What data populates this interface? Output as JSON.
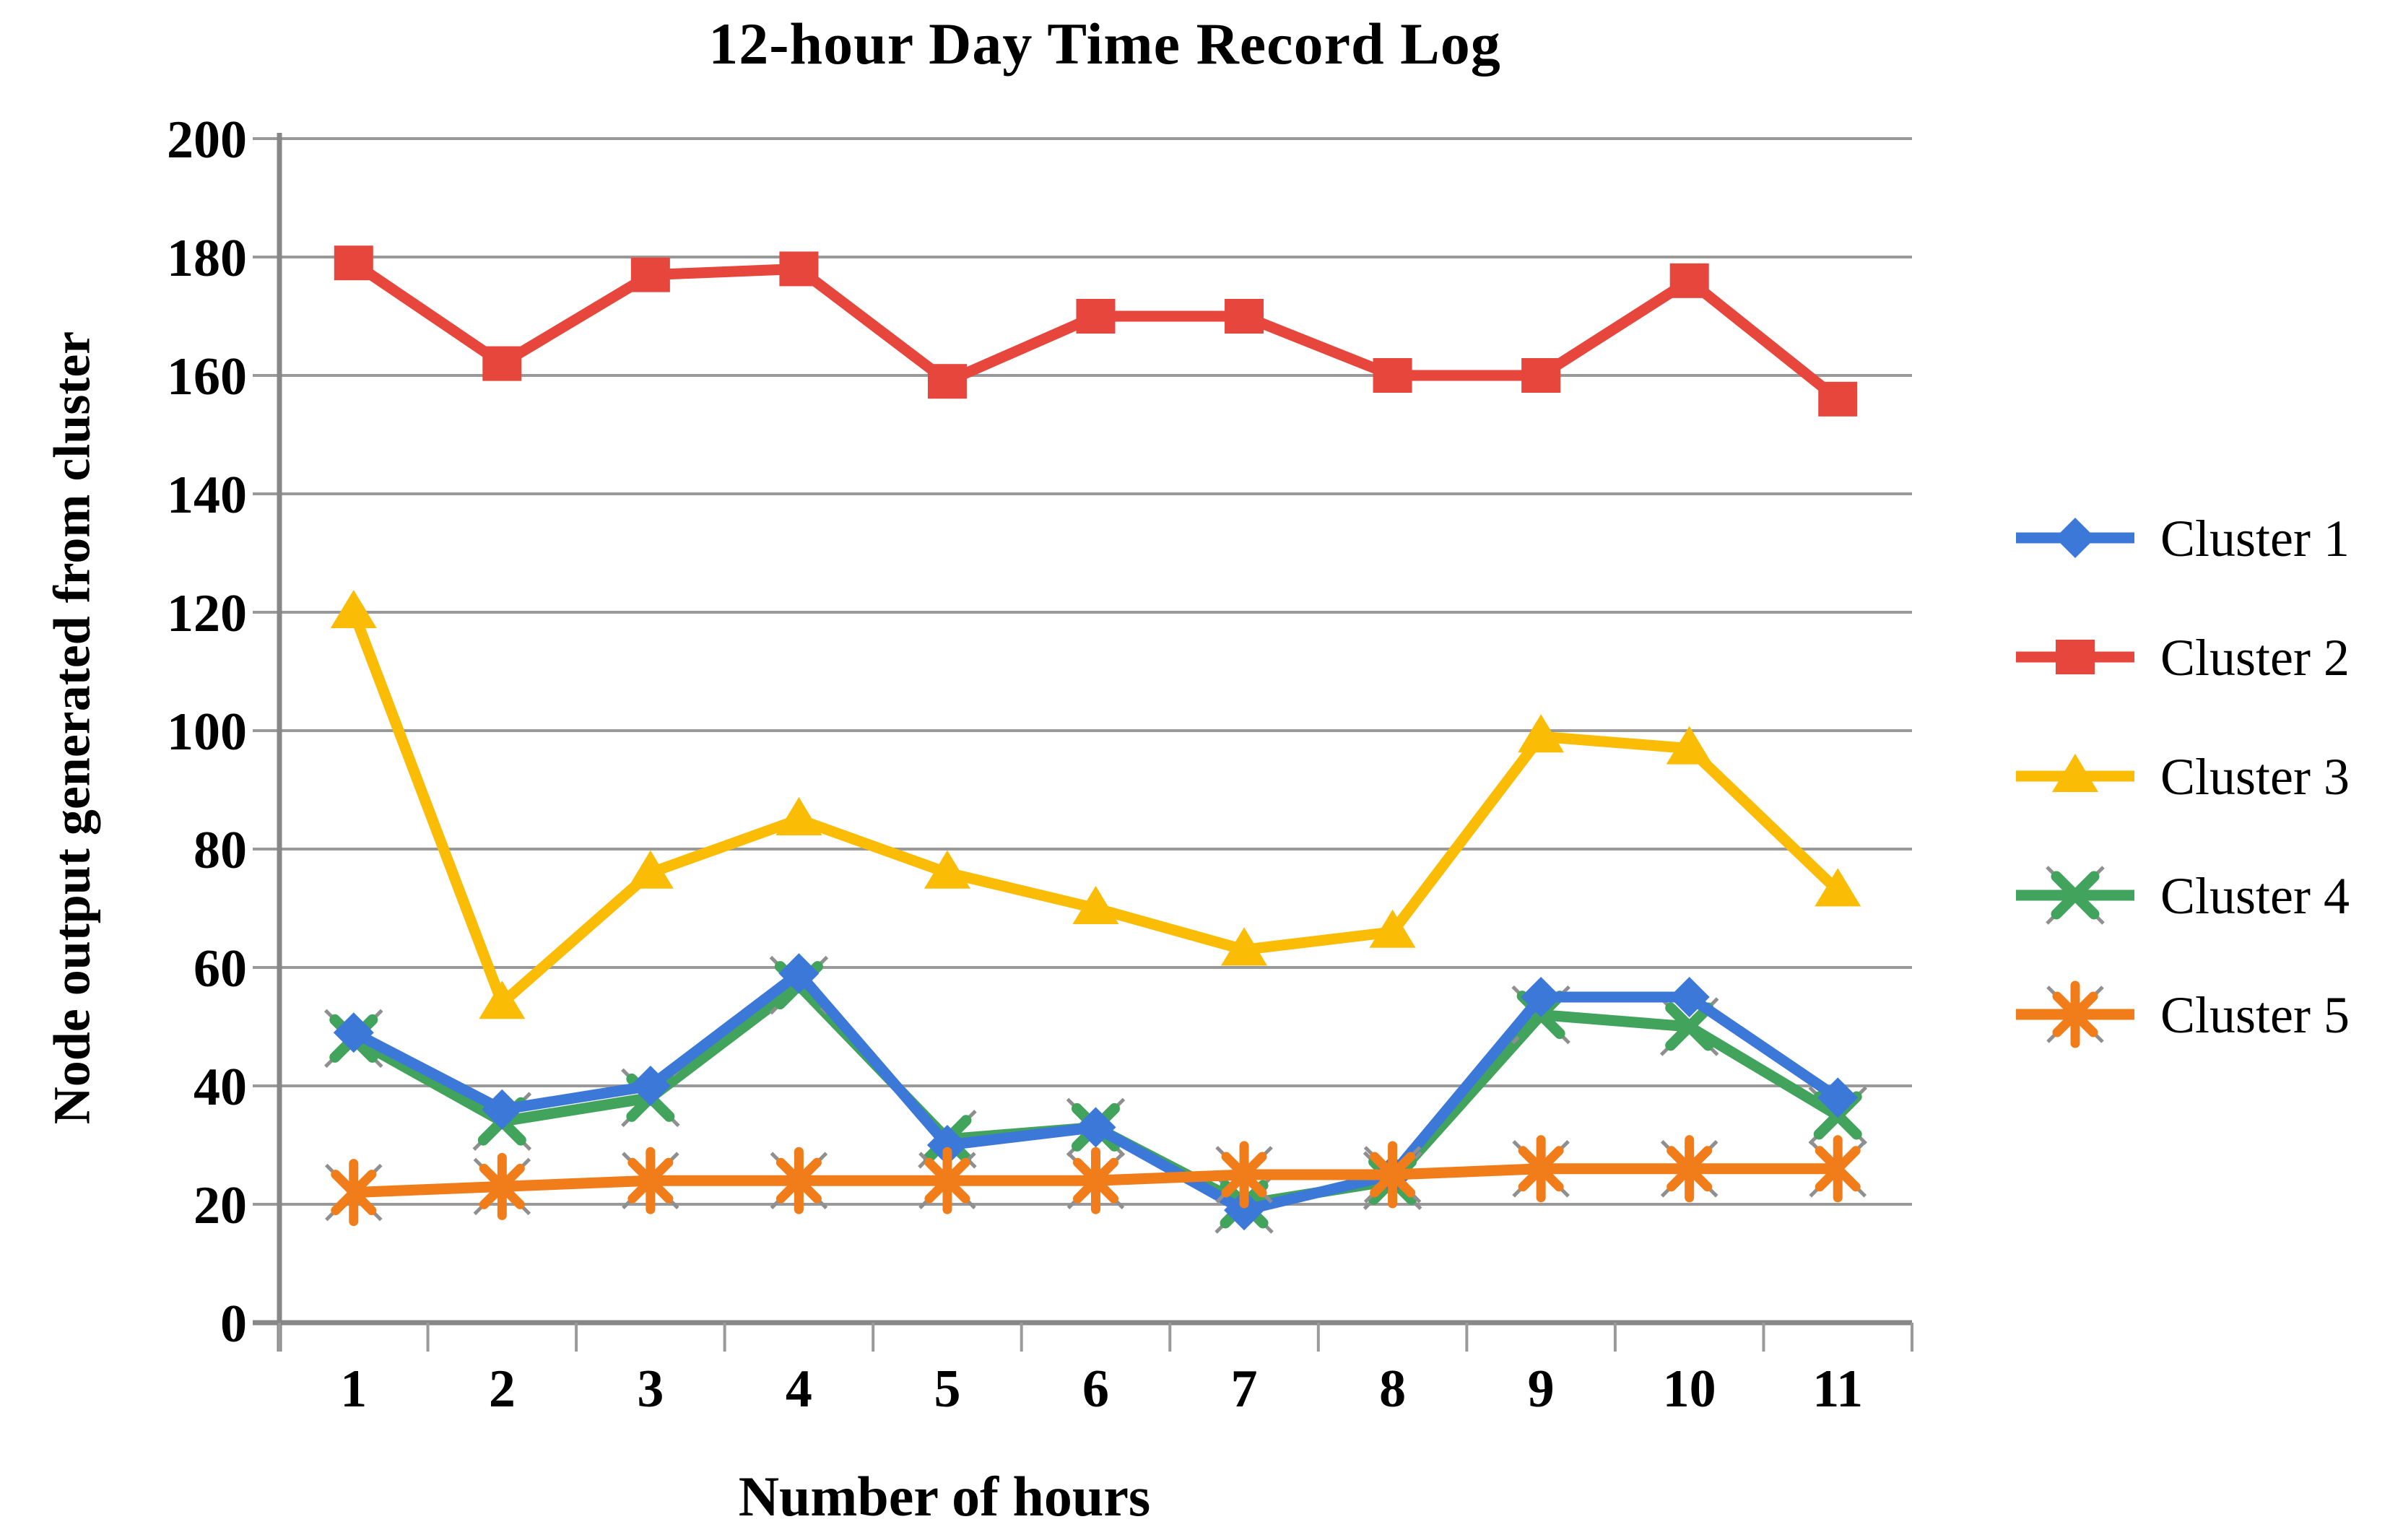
{
  "chart_data": {
    "type": "line",
    "title": "12-hour Day Time Record Log",
    "xlabel": "Number of hours",
    "ylabel": "Node output generated from cluster",
    "categories": [
      "1",
      "2",
      "3",
      "4",
      "5",
      "6",
      "7",
      "8",
      "9",
      "10",
      "11"
    ],
    "ylim": [
      0,
      200
    ],
    "y_ticks": [
      0,
      20,
      40,
      60,
      80,
      100,
      120,
      140,
      160,
      180,
      200
    ],
    "grid": "horizontal-only",
    "legend_position": "right",
    "series": [
      {
        "name": "Cluster 1",
        "color": "#3C78D8",
        "marker": "diamond",
        "values": [
          49,
          36,
          40,
          59,
          30,
          33,
          19,
          25,
          55,
          55,
          38
        ]
      },
      {
        "name": "Cluster 2",
        "color": "#E6463C",
        "marker": "square",
        "values": [
          179,
          162,
          177,
          178,
          159,
          170,
          170,
          160,
          160,
          176,
          156
        ]
      },
      {
        "name": "Cluster 3",
        "color": "#FBBC05",
        "marker": "triangle",
        "values": [
          120,
          54,
          76,
          85,
          76,
          70,
          63,
          66,
          99,
          97,
          73
        ]
      },
      {
        "name": "Cluster 4",
        "color": "#42A45C",
        "marker": "x",
        "values": [
          48,
          34,
          38,
          57,
          31,
          33,
          20,
          24,
          52,
          50,
          35
        ]
      },
      {
        "name": "Cluster 5",
        "color": "#F07D1A",
        "marker": "asterisk",
        "values": [
          22,
          23,
          24,
          24,
          24,
          24,
          25,
          25,
          26,
          26,
          26
        ]
      }
    ]
  },
  "colors": {
    "background": "#FFFFFF",
    "gridline": "#999999",
    "axis": "#878787",
    "tick": "#9A9A9A",
    "text": "#000000",
    "marker_outline": "#8F8F8F"
  }
}
